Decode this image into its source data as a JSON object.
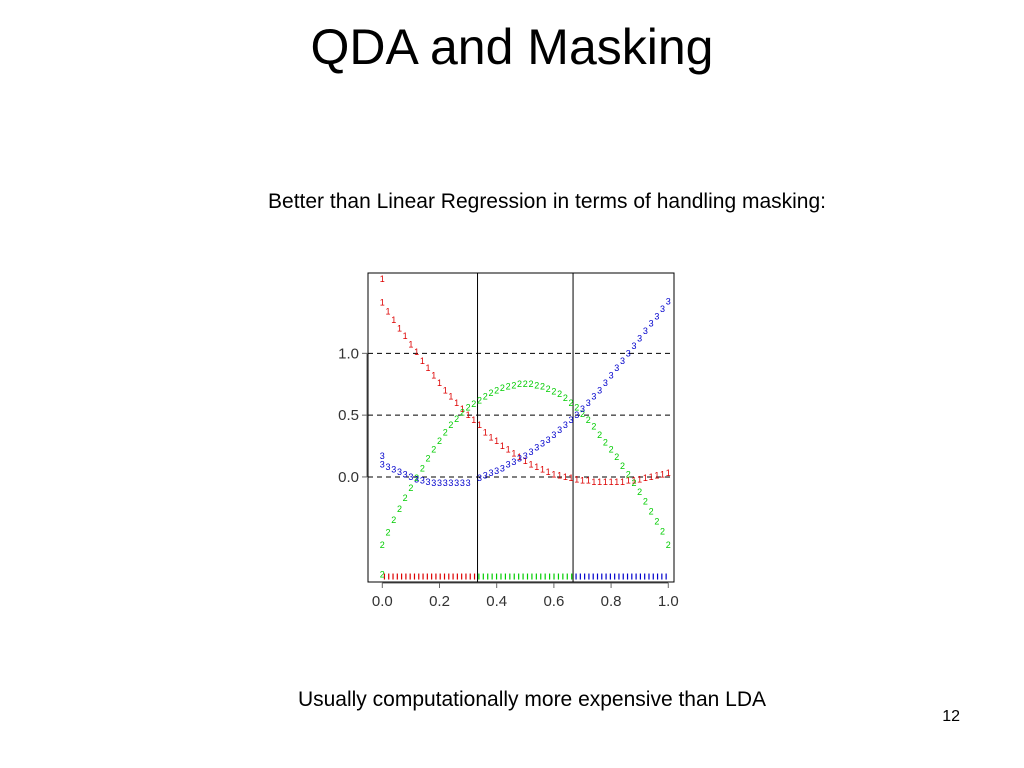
{
  "slide": {
    "title": "QDA and Masking",
    "subtitle": "Better than Linear Regression in terms of handling masking:",
    "footer": "Usually computationally more expensive than LDA",
    "page_number": "12"
  },
  "chart_data": {
    "type": "scatter",
    "title": "",
    "xlabel": "",
    "ylabel": "",
    "xlim": [
      -0.05,
      1.02
    ],
    "ylim": [
      -0.85,
      1.65
    ],
    "x_ticks": [
      0.0,
      0.2,
      0.4,
      0.6,
      0.8,
      1.0
    ],
    "x_tick_labels": [
      "0.0",
      "0.2",
      "0.4",
      "0.6",
      "0.8",
      "1.0"
    ],
    "y_ticks": [
      0.0,
      0.5,
      1.0
    ],
    "y_tick_labels": [
      "0.0",
      "0.5",
      "1.0"
    ],
    "horizontal_reference_lines": [
      0.0,
      0.5,
      1.0
    ],
    "vertical_boundaries": [
      0.333,
      0.667
    ],
    "rug_y": -0.83,
    "grid": false,
    "legend": "none",
    "series": [
      {
        "name": "1",
        "color": "#dd0000",
        "points": [
          [
            0.0,
            1.6
          ],
          [
            0.0,
            1.41
          ],
          [
            0.02,
            1.34
          ],
          [
            0.04,
            1.27
          ],
          [
            0.06,
            1.2
          ],
          [
            0.08,
            1.14
          ],
          [
            0.1,
            1.07
          ],
          [
            0.12,
            1.01
          ],
          [
            0.14,
            0.94
          ],
          [
            0.16,
            0.88
          ],
          [
            0.18,
            0.82
          ],
          [
            0.2,
            0.76
          ],
          [
            0.22,
            0.7
          ],
          [
            0.24,
            0.65
          ],
          [
            0.26,
            0.6
          ],
          [
            0.28,
            0.55
          ],
          [
            0.3,
            0.5
          ],
          [
            0.32,
            0.46
          ],
          [
            0.34,
            0.42
          ],
          [
            0.36,
            0.36
          ],
          [
            0.38,
            0.32
          ],
          [
            0.4,
            0.29
          ],
          [
            0.42,
            0.25
          ],
          [
            0.44,
            0.22
          ],
          [
            0.46,
            0.19
          ],
          [
            0.48,
            0.16
          ],
          [
            0.5,
            0.13
          ],
          [
            0.52,
            0.1
          ],
          [
            0.54,
            0.08
          ],
          [
            0.56,
            0.06
          ],
          [
            0.58,
            0.04
          ],
          [
            0.6,
            0.02
          ],
          [
            0.62,
            0.01
          ],
          [
            0.64,
            0.0
          ],
          [
            0.66,
            -0.01
          ],
          [
            0.68,
            -0.02
          ],
          [
            0.7,
            -0.03
          ],
          [
            0.72,
            -0.03
          ],
          [
            0.74,
            -0.04
          ],
          [
            0.76,
            -0.04
          ],
          [
            0.78,
            -0.04
          ],
          [
            0.8,
            -0.04
          ],
          [
            0.82,
            -0.04
          ],
          [
            0.84,
            -0.04
          ],
          [
            0.86,
            -0.03
          ],
          [
            0.88,
            -0.03
          ],
          [
            0.9,
            -0.02
          ],
          [
            0.92,
            -0.01
          ],
          [
            0.94,
            -0.0
          ],
          [
            0.96,
            0.01
          ],
          [
            0.98,
            0.02
          ],
          [
            1.0,
            0.03
          ]
        ],
        "rug_range": [
          0.0,
          0.33
        ]
      },
      {
        "name": "2",
        "color": "#00cc00",
        "points": [
          [
            0.0,
            -0.79
          ],
          [
            0.0,
            -0.55
          ],
          [
            0.02,
            -0.45
          ],
          [
            0.04,
            -0.35
          ],
          [
            0.06,
            -0.26
          ],
          [
            0.08,
            -0.17
          ],
          [
            0.1,
            -0.09
          ],
          [
            0.12,
            -0.01
          ],
          [
            0.14,
            0.07
          ],
          [
            0.16,
            0.15
          ],
          [
            0.18,
            0.22
          ],
          [
            0.2,
            0.29
          ],
          [
            0.22,
            0.36
          ],
          [
            0.24,
            0.42
          ],
          [
            0.26,
            0.47
          ],
          [
            0.28,
            0.52
          ],
          [
            0.3,
            0.56
          ],
          [
            0.32,
            0.59
          ],
          [
            0.34,
            0.62
          ],
          [
            0.36,
            0.65
          ],
          [
            0.38,
            0.68
          ],
          [
            0.4,
            0.7
          ],
          [
            0.42,
            0.72
          ],
          [
            0.44,
            0.73
          ],
          [
            0.46,
            0.74
          ],
          [
            0.48,
            0.75
          ],
          [
            0.5,
            0.75
          ],
          [
            0.52,
            0.75
          ],
          [
            0.54,
            0.74
          ],
          [
            0.56,
            0.73
          ],
          [
            0.58,
            0.71
          ],
          [
            0.6,
            0.69
          ],
          [
            0.62,
            0.67
          ],
          [
            0.64,
            0.64
          ],
          [
            0.66,
            0.6
          ],
          [
            0.68,
            0.56
          ],
          [
            0.7,
            0.51
          ],
          [
            0.72,
            0.46
          ],
          [
            0.74,
            0.41
          ],
          [
            0.76,
            0.34
          ],
          [
            0.78,
            0.28
          ],
          [
            0.8,
            0.22
          ],
          [
            0.82,
            0.16
          ],
          [
            0.84,
            0.09
          ],
          [
            0.86,
            0.02
          ],
          [
            0.88,
            -0.05
          ],
          [
            0.9,
            -0.12
          ],
          [
            0.92,
            -0.2
          ],
          [
            0.94,
            -0.28
          ],
          [
            0.96,
            -0.36
          ],
          [
            0.98,
            -0.44
          ],
          [
            1.0,
            -0.55
          ]
        ],
        "rug_range": [
          0.33,
          0.67
        ]
      },
      {
        "name": "3",
        "color": "#0000cc",
        "points": [
          [
            0.0,
            0.17
          ],
          [
            0.0,
            0.1
          ],
          [
            0.02,
            0.08
          ],
          [
            0.04,
            0.06
          ],
          [
            0.06,
            0.04
          ],
          [
            0.08,
            0.02
          ],
          [
            0.1,
            0.0
          ],
          [
            0.12,
            -0.02
          ],
          [
            0.14,
            -0.03
          ],
          [
            0.16,
            -0.04
          ],
          [
            0.18,
            -0.05
          ],
          [
            0.2,
            -0.05
          ],
          [
            0.22,
            -0.05
          ],
          [
            0.24,
            -0.05
          ],
          [
            0.26,
            -0.05
          ],
          [
            0.28,
            -0.05
          ],
          [
            0.3,
            -0.05
          ],
          [
            0.34,
            -0.01
          ],
          [
            0.36,
            0.01
          ],
          [
            0.38,
            0.03
          ],
          [
            0.4,
            0.05
          ],
          [
            0.42,
            0.07
          ],
          [
            0.44,
            0.1
          ],
          [
            0.46,
            0.12
          ],
          [
            0.48,
            0.15
          ],
          [
            0.5,
            0.17
          ],
          [
            0.52,
            0.2
          ],
          [
            0.54,
            0.24
          ],
          [
            0.56,
            0.27
          ],
          [
            0.58,
            0.3
          ],
          [
            0.6,
            0.34
          ],
          [
            0.62,
            0.38
          ],
          [
            0.64,
            0.42
          ],
          [
            0.66,
            0.46
          ],
          [
            0.68,
            0.5
          ],
          [
            0.7,
            0.55
          ],
          [
            0.72,
            0.6
          ],
          [
            0.74,
            0.65
          ],
          [
            0.76,
            0.7
          ],
          [
            0.78,
            0.76
          ],
          [
            0.8,
            0.82
          ],
          [
            0.82,
            0.88
          ],
          [
            0.84,
            0.94
          ],
          [
            0.86,
            1.0
          ],
          [
            0.88,
            1.06
          ],
          [
            0.9,
            1.12
          ],
          [
            0.92,
            1.18
          ],
          [
            0.94,
            1.24
          ],
          [
            0.96,
            1.3
          ],
          [
            0.98,
            1.36
          ],
          [
            1.0,
            1.42
          ]
        ],
        "rug_range": [
          0.67,
          1.0
        ]
      }
    ]
  }
}
